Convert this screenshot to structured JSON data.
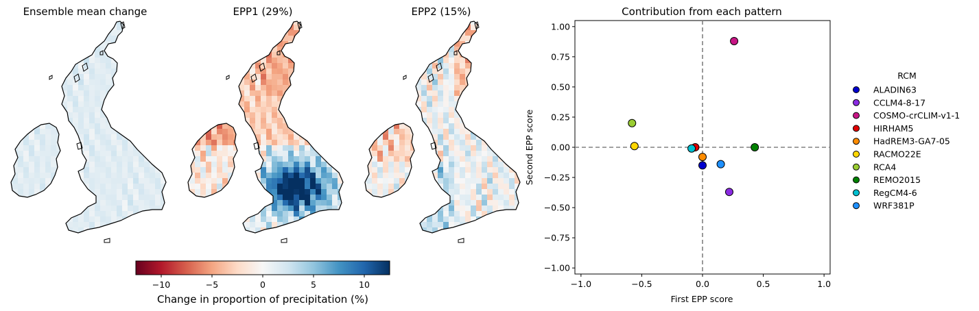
{
  "maps": [
    {
      "title": "Ensemble mean change",
      "pattern": "mean"
    },
    {
      "title": "EPP1 (29%)",
      "pattern": "epp1"
    },
    {
      "title": "EPP2 (15%)",
      "pattern": "epp2"
    }
  ],
  "colorbar": {
    "label": "Change in proportion of precipitation (%)",
    "min": -12.5,
    "max": 12.5,
    "ticks": [
      -10,
      -5,
      0,
      5,
      10
    ],
    "tick_labels": [
      "−10",
      "−5",
      "0",
      "5",
      "10"
    ],
    "colormap": "RdBu",
    "stops": [
      "#67001f",
      "#b2182b",
      "#d6604d",
      "#f4a582",
      "#fddbc7",
      "#f7f7f7",
      "#d1e5f0",
      "#92c5de",
      "#4393c3",
      "#2166ac",
      "#053061"
    ]
  },
  "chart_data": {
    "type": "scatter",
    "title": "Contribution from each pattern",
    "xlabel": "First EPP score",
    "ylabel": "Second EPP score",
    "xlim": [
      -1.05,
      1.05
    ],
    "ylim": [
      -1.05,
      1.05
    ],
    "xticks": [
      -1.0,
      -0.5,
      0.0,
      0.5,
      1.0
    ],
    "xtick_labels": [
      "−1.0",
      "−0.5",
      "0.0",
      "0.5",
      "1.0"
    ],
    "yticks": [
      1.0,
      0.75,
      0.5,
      0.25,
      0.0,
      -0.25,
      -0.5,
      -0.75,
      -1.0
    ],
    "ytick_labels": [
      "1.00",
      "0.75",
      "0.50",
      "0.25",
      "0.00",
      "−0.25",
      "−0.50",
      "−0.75",
      "−1.00"
    ],
    "reference_lines": {
      "x": 0,
      "y": 0,
      "style": "dashed",
      "color": "#808080"
    },
    "legend_title": "RCM",
    "legend_position": "right, outside",
    "series": [
      {
        "name": "ALADIN63",
        "color": "#0000cd",
        "x": 0.0,
        "y": -0.15
      },
      {
        "name": "CCLM4-8-17",
        "color": "#8a2be2",
        "x": 0.22,
        "y": -0.37
      },
      {
        "name": "COSMO-crCLIM-v1-1",
        "color": "#c71585",
        "x": 0.26,
        "y": 0.88
      },
      {
        "name": "HIRHAM5",
        "color": "#e00000",
        "x": -0.06,
        "y": 0.0
      },
      {
        "name": "HadREM3-GA7-05",
        "color": "#ff8c00",
        "x": 0.0,
        "y": -0.08
      },
      {
        "name": "RACMO22E",
        "color": "#ffd700",
        "x": -0.56,
        "y": 0.01
      },
      {
        "name": "RCA4",
        "color": "#9acd32",
        "x": -0.58,
        "y": 0.2
      },
      {
        "name": "REMO2015",
        "color": "#008000",
        "x": 0.43,
        "y": 0.0
      },
      {
        "name": "RegCM4-6",
        "color": "#00c0d0",
        "x": -0.09,
        "y": -0.01
      },
      {
        "name": "WRF381P",
        "color": "#1e90ff",
        "x": 0.15,
        "y": -0.14
      }
    ]
  }
}
